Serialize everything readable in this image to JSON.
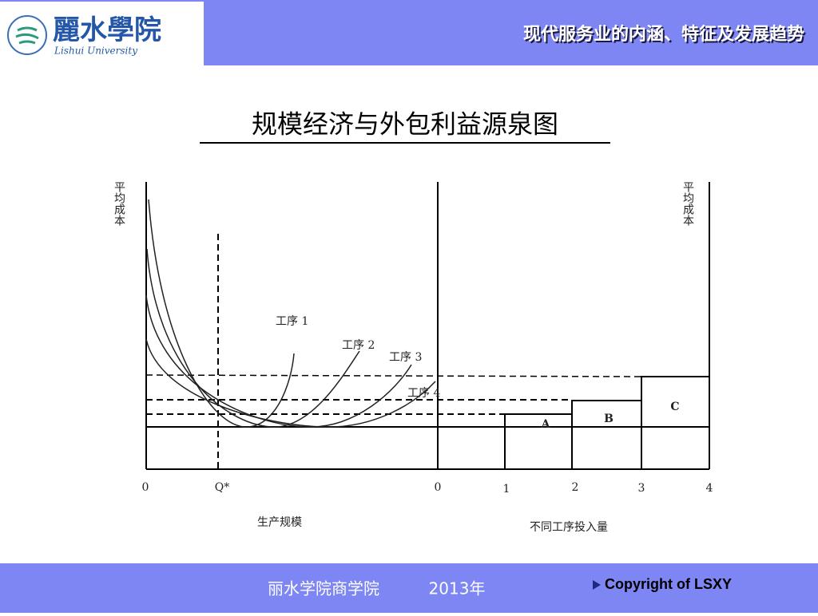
{
  "header": {
    "logo_name": "麗水學院",
    "logo_subtitle": "Lishui University",
    "title": "现代服务业的内涵、特征及发展趋势"
  },
  "slide_title": "规模经济与外包利益源泉图",
  "diagram": {
    "left_y_label": "平均成本",
    "right_y_label": "平均成本",
    "left_x_label": "生产规模",
    "right_x_label": "不同工序投入量",
    "left_ticks": [
      "0",
      "Q*"
    ],
    "right_ticks": [
      "0",
      "1",
      "2",
      "3",
      "4"
    ],
    "curves": [
      "工序 1",
      "工序 2",
      "工序 3",
      "工序 4"
    ],
    "boxes": [
      "A",
      "B",
      "C"
    ]
  },
  "footer": {
    "org": "丽水学院商学院",
    "year": "2013年",
    "copyright": "Copyright of LSXY"
  }
}
